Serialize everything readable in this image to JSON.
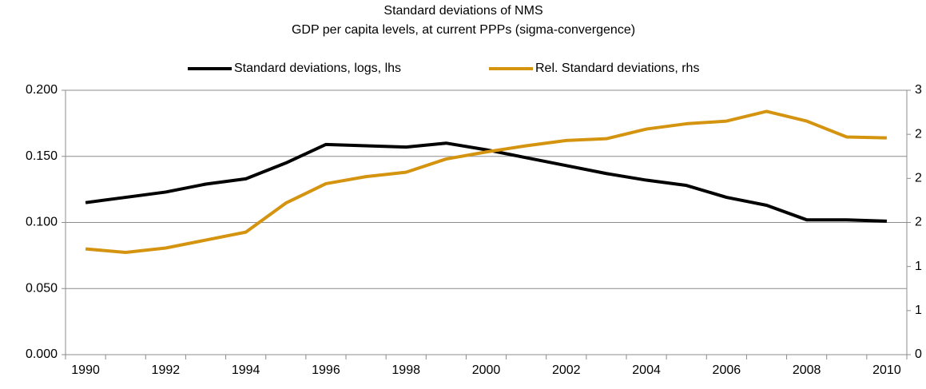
{
  "chart_data": {
    "type": "line",
    "title": "Standard deviations of NMS",
    "subtitle": "GDP per capita levels, at current PPPs (sigma-convergence)",
    "categories": [
      "1990",
      null,
      "1992",
      null,
      "1994",
      null,
      "1996",
      null,
      "1998",
      null,
      "2000",
      null,
      "2002",
      null,
      "2004",
      null,
      "2006",
      null,
      "2008",
      null,
      "2010"
    ],
    "series": [
      {
        "name": "Standard deviations, logs, lhs",
        "color": "#000000",
        "values": [
          0.115,
          0.119,
          0.123,
          0.129,
          0.133,
          0.145,
          0.159,
          0.158,
          0.157,
          0.16,
          0.155,
          0.149,
          0.143,
          0.137,
          0.132,
          0.128,
          0.119,
          0.113,
          0.102,
          0.102,
          0.101
        ]
      },
      {
        "name": "Rel. Standard deviations, rhs",
        "color": "#d4940f",
        "axis": "y2",
        "values": [
          1.2,
          1.16,
          1.21,
          1.3,
          1.39,
          1.72,
          1.94,
          2.02,
          2.07,
          2.22,
          2.3,
          2.37,
          2.43,
          2.45,
          2.56,
          2.62,
          2.65,
          2.76,
          2.65,
          2.47,
          2.46
        ]
      }
    ],
    "ylim": [
      0,
      0.2
    ],
    "yticks": [
      {
        "value": 0,
        "label": "0.000"
      },
      {
        "value": 0.05,
        "label": "0.050"
      },
      {
        "value": 0.1,
        "label": "0.100"
      },
      {
        "value": 0.15,
        "label": "0.150"
      },
      {
        "value": 0.2,
        "label": "0.200"
      }
    ],
    "y2lim": [
      0,
      3
    ],
    "y2ticks": [
      0,
      {
        "value": 0.5,
        "label": "1"
      },
      1,
      {
        "value": 1.5,
        "label": "2"
      },
      2,
      {
        "value": 2.5,
        "label": "2"
      },
      3
    ],
    "grid": true,
    "legend": "top"
  }
}
